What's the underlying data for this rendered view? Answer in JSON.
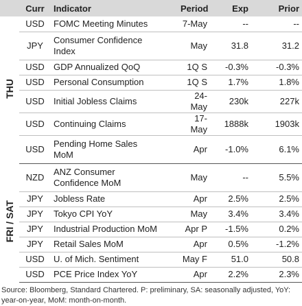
{
  "header": [
    "Curr",
    "Indicator",
    "Period",
    "Exp",
    "Prior"
  ],
  "groups": [
    {
      "day": "THU",
      "rows": [
        [
          "USD",
          "FOMC Meeting Minutes",
          "7-May",
          "--",
          "--"
        ],
        [
          "JPY",
          "Consumer Confidence\nIndex",
          "May",
          "31.8",
          "31.2"
        ],
        [
          "USD",
          "GDP Annualized QoQ",
          "1Q S",
          "-0.3%",
          "-0.3%"
        ],
        [
          "USD",
          "Personal Consumption",
          "1Q S",
          "1.7%",
          "1.8%"
        ],
        [
          "USD",
          "Initial Jobless Claims",
          "24-May",
          "230k",
          "227k"
        ],
        [
          "USD",
          "Continuing Claims",
          "17-May",
          "1888k",
          "1903k"
        ],
        [
          "USD",
          "Pending Home Sales\nMoM",
          "Apr",
          "-1.0%",
          "6.1%"
        ]
      ]
    },
    {
      "day": "FRI / SAT",
      "rows": [
        [
          "NZD",
          "ANZ Consumer\nConfidence MoM",
          "May",
          "--",
          "5.5%"
        ],
        [
          "JPY",
          "Jobless Rate",
          "Apr",
          "2.5%",
          "2.5%"
        ],
        [
          "JPY",
          "Tokyo CPI YoY",
          "May",
          "3.4%",
          "3.4%"
        ],
        [
          "JPY",
          "Industrial Production MoM",
          "Apr P",
          "-1.5%",
          "0.2%"
        ],
        [
          "JPY",
          "Retail Sales MoM",
          "Apr",
          "0.5%",
          "-1.2%"
        ],
        [
          "USD",
          "U. of Mich. Sentiment",
          "May F",
          "51.0",
          "50.8"
        ],
        [
          "USD",
          "PCE Price Index YoY",
          "Apr",
          "2.2%",
          "2.3%"
        ]
      ]
    }
  ],
  "footnote": "Source: Bloomberg, Standard Chartered. P: preliminary, SA: seasonally adjusted, YoY: year-on-year, MoM: month-on-month."
}
